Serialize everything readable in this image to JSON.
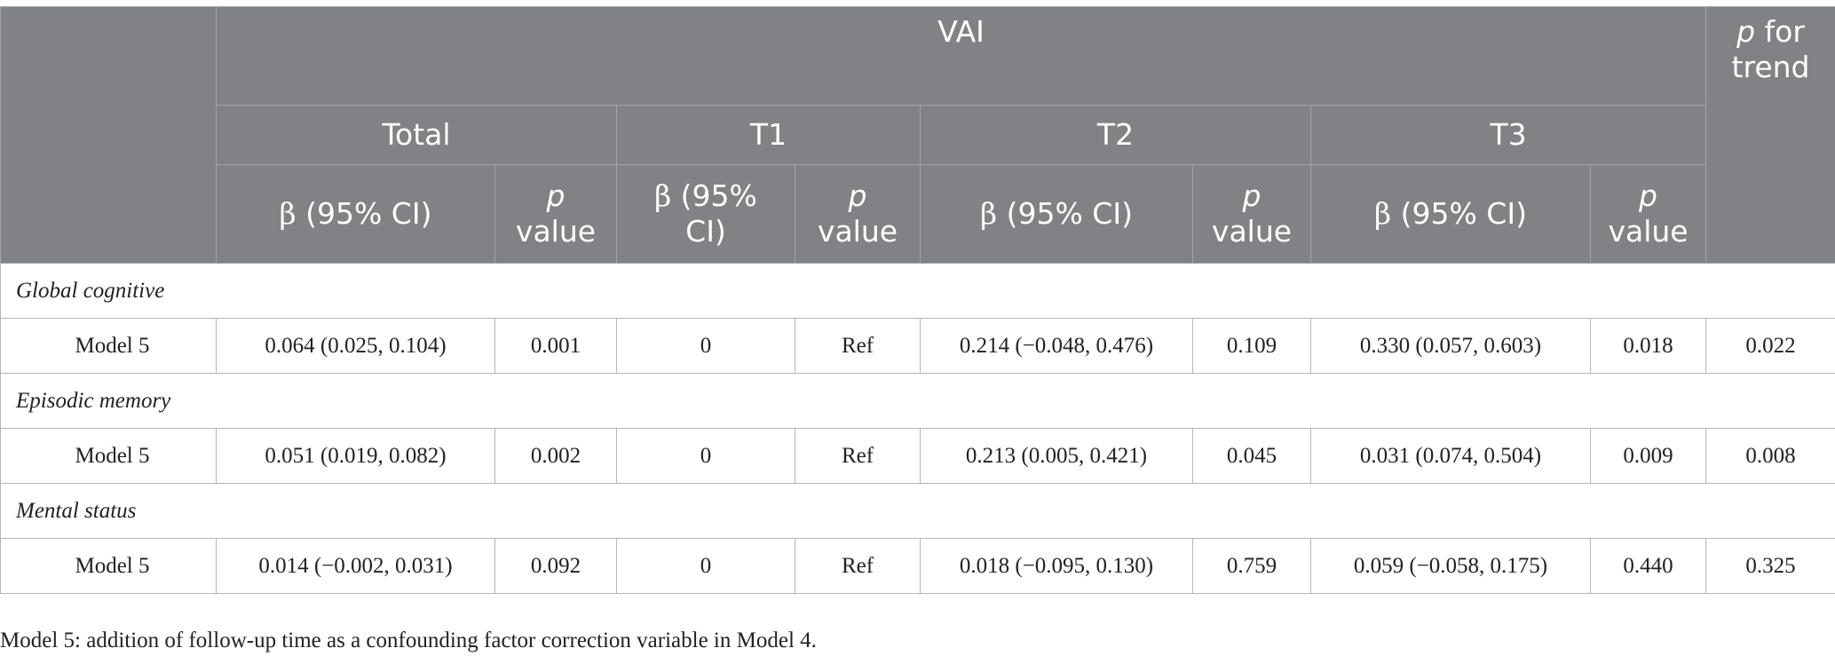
{
  "header": {
    "vai": "VAI",
    "p_trend_line1": "p",
    "p_trend_line1_rest": " for",
    "p_trend_line2": "trend",
    "groups": [
      "Total",
      "T1",
      "T2",
      "T3"
    ],
    "beta_sym": "β",
    "beta_rest": " (95% CI)",
    "t1_beta_line1": " (95%",
    "t1_beta_line2": "CI)",
    "p_italic": "p",
    "p_value_word": "value"
  },
  "sections": [
    {
      "title": "Global cognitive",
      "row": {
        "label": "Model 5",
        "total_beta": "0.064 (0.025, 0.104)",
        "total_p": "0.001",
        "t1_beta": "0",
        "t1_p": "Ref",
        "t2_beta": "0.214 (−0.048, 0.476)",
        "t2_p": "0.109",
        "t3_beta": "0.330 (0.057, 0.603)",
        "t3_p": "0.018",
        "p_trend": "0.022"
      }
    },
    {
      "title": "Episodic memory",
      "row": {
        "label": "Model 5",
        "total_beta": "0.051 (0.019, 0.082)",
        "total_p": "0.002",
        "t1_beta": "0",
        "t1_p": "Ref",
        "t2_beta": "0.213 (0.005, 0.421)",
        "t2_p": "0.045",
        "t3_beta": "0.031 (0.074, 0.504)",
        "t3_p": "0.009",
        "p_trend": "0.008"
      }
    },
    {
      "title": "Mental status",
      "row": {
        "label": "Model 5",
        "total_beta": "0.014 (−0.002, 0.031)",
        "total_p": "0.092",
        "t1_beta": "0",
        "t1_p": "Ref",
        "t2_beta": "0.018 (−0.095, 0.130)",
        "t2_p": "0.759",
        "t3_beta": "0.059 (−0.058, 0.175)",
        "t3_p": "0.440",
        "p_trend": "0.325"
      }
    }
  ],
  "footnote": "Model 5: addition of follow-up time as a confounding factor correction variable in Model 4."
}
